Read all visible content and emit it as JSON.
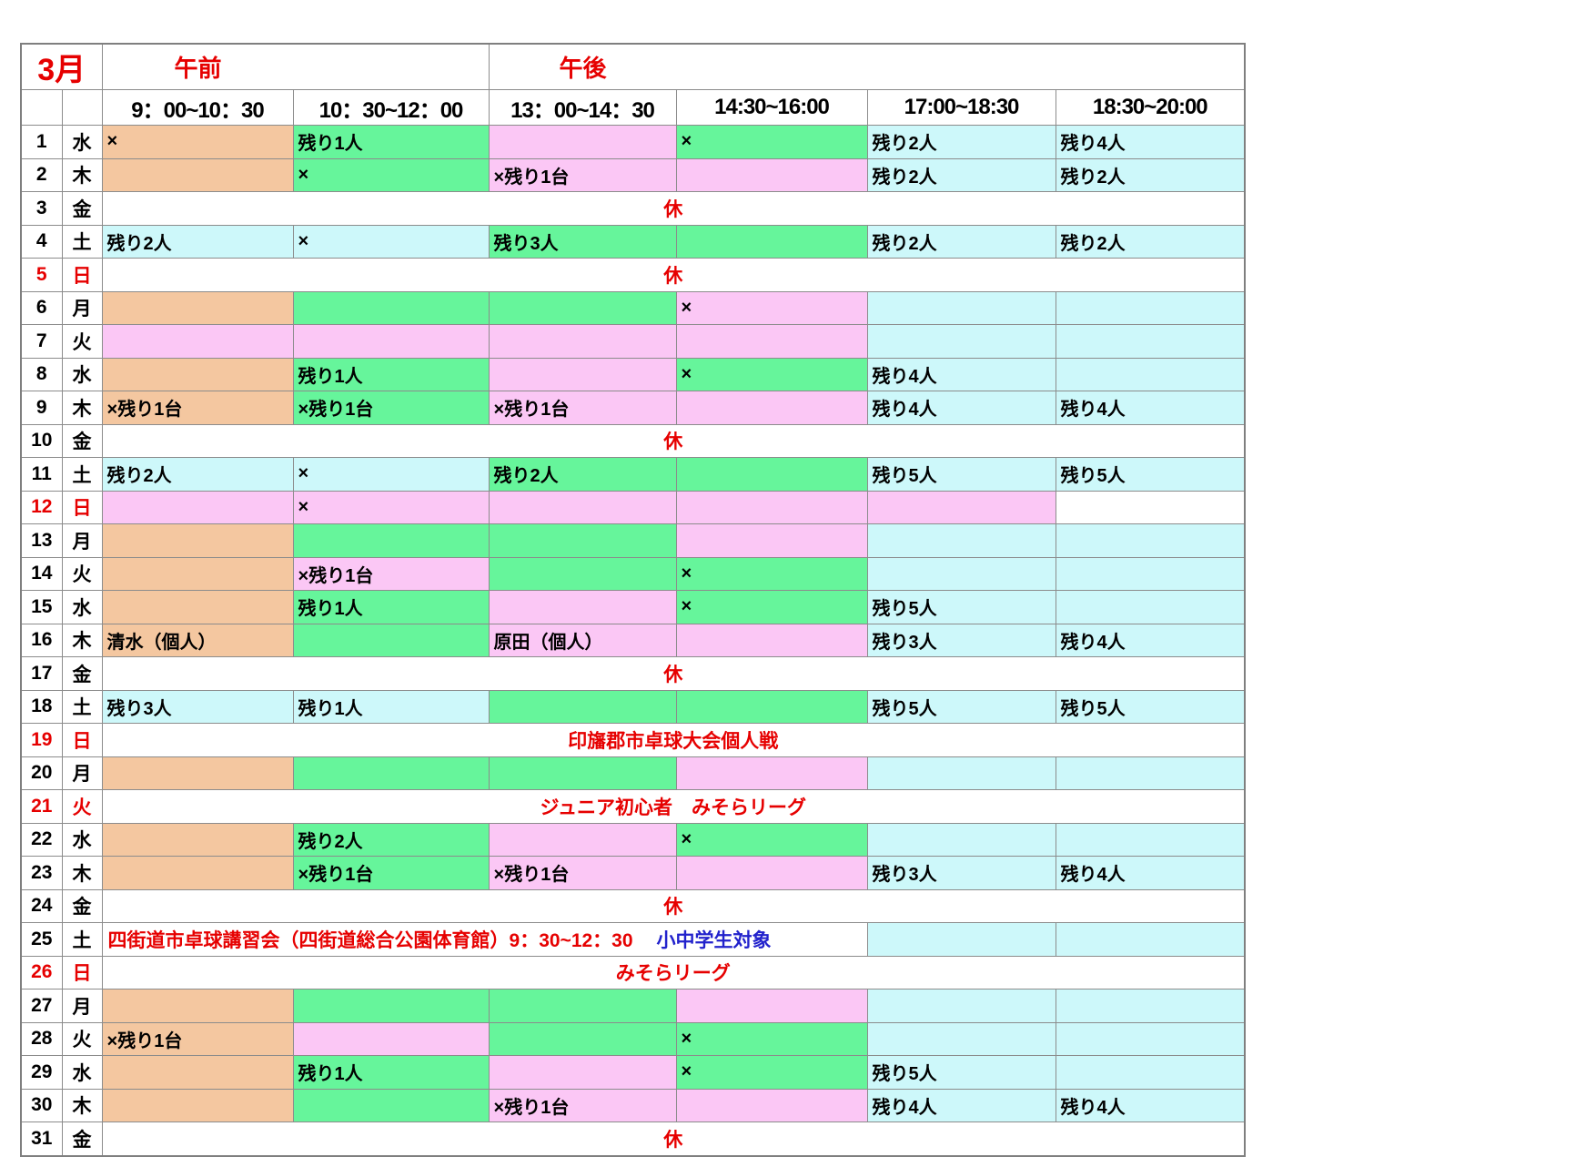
{
  "title": "3月",
  "palette": {
    "orange": "#F4C7A0",
    "green": "#66F59B",
    "pink": "#FBC7F5",
    "cyan": "#CDF8FA",
    "white": "#FFFFFF",
    "red_text": "#E60000",
    "blue_text": "#2222CC",
    "black_text": "#000000",
    "grid_line": "#8C8C8C"
  },
  "header": {
    "am_label": "午前",
    "pm_label": "午後",
    "time_slots": [
      "9：00~10：30",
      "10：30~12：00",
      "13：00~14：30",
      "14:30~16:00",
      "17:00~18:30",
      "18:30~20:00"
    ]
  },
  "rows": [
    {
      "day": "1",
      "dow": "水",
      "red": false,
      "cells": [
        [
          "orange",
          "×"
        ],
        [
          "green",
          "残り1人"
        ],
        [
          "pink",
          ""
        ],
        [
          "green",
          "×"
        ],
        [
          "cyan",
          "残り2人"
        ],
        [
          "cyan",
          "残り4人"
        ]
      ]
    },
    {
      "day": "2",
      "dow": "木",
      "red": false,
      "cells": [
        [
          "orange",
          ""
        ],
        [
          "green",
          "×"
        ],
        [
          "pink",
          "×残り1台"
        ],
        [
          "pink",
          ""
        ],
        [
          "cyan",
          "残り2人"
        ],
        [
          "cyan",
          "残り2人"
        ]
      ]
    },
    {
      "day": "3",
      "dow": "金",
      "red": false,
      "merged": "休"
    },
    {
      "day": "4",
      "dow": "土",
      "red": false,
      "cells": [
        [
          "cyan",
          "残り2人"
        ],
        [
          "cyan",
          "×"
        ],
        [
          "green",
          "残り3人"
        ],
        [
          "green",
          ""
        ],
        [
          "cyan",
          "残り2人"
        ],
        [
          "cyan",
          "残り2人"
        ]
      ]
    },
    {
      "day": "5",
      "dow": "日",
      "red": true,
      "merged": "休"
    },
    {
      "day": "6",
      "dow": "月",
      "red": false,
      "cells": [
        [
          "orange",
          ""
        ],
        [
          "green",
          ""
        ],
        [
          "green",
          ""
        ],
        [
          "pink",
          "×"
        ],
        [
          "cyan",
          ""
        ],
        [
          "cyan",
          ""
        ]
      ]
    },
    {
      "day": "7",
      "dow": "火",
      "red": false,
      "cells": [
        [
          "pink",
          ""
        ],
        [
          "pink",
          ""
        ],
        [
          "pink",
          ""
        ],
        [
          "pink",
          ""
        ],
        [
          "cyan",
          ""
        ],
        [
          "cyan",
          ""
        ]
      ]
    },
    {
      "day": "8",
      "dow": "水",
      "red": false,
      "cells": [
        [
          "orange",
          ""
        ],
        [
          "green",
          "残り1人"
        ],
        [
          "pink",
          ""
        ],
        [
          "green",
          "×"
        ],
        [
          "cyan",
          "残り4人"
        ],
        [
          "cyan",
          ""
        ]
      ]
    },
    {
      "day": "9",
      "dow": "木",
      "red": false,
      "cells": [
        [
          "orange",
          "×残り1台"
        ],
        [
          "green",
          "×残り1台"
        ],
        [
          "pink",
          "×残り1台"
        ],
        [
          "pink",
          ""
        ],
        [
          "cyan",
          "残り4人"
        ],
        [
          "cyan",
          "残り4人"
        ]
      ]
    },
    {
      "day": "10",
      "dow": "金",
      "red": false,
      "merged": "休"
    },
    {
      "day": "11",
      "dow": "土",
      "red": false,
      "cells": [
        [
          "cyan",
          "残り2人"
        ],
        [
          "cyan",
          "×"
        ],
        [
          "green",
          "残り2人"
        ],
        [
          "green",
          ""
        ],
        [
          "cyan",
          "残り5人"
        ],
        [
          "cyan",
          "残り5人"
        ]
      ]
    },
    {
      "day": "12",
      "dow": "日",
      "red": true,
      "cells": [
        [
          "pink",
          ""
        ],
        [
          "pink",
          "×"
        ],
        [
          "pink",
          ""
        ],
        [
          "pink",
          ""
        ],
        [
          "pink",
          ""
        ],
        [
          "white",
          ""
        ]
      ]
    },
    {
      "day": "13",
      "dow": "月",
      "red": false,
      "cells": [
        [
          "orange",
          ""
        ],
        [
          "green",
          ""
        ],
        [
          "green",
          ""
        ],
        [
          "pink",
          ""
        ],
        [
          "cyan",
          ""
        ],
        [
          "cyan",
          ""
        ]
      ]
    },
    {
      "day": "14",
      "dow": "火",
      "red": false,
      "cells": [
        [
          "orange",
          ""
        ],
        [
          "pink",
          "×残り1台"
        ],
        [
          "green",
          ""
        ],
        [
          "green",
          "×"
        ],
        [
          "cyan",
          ""
        ],
        [
          "cyan",
          ""
        ]
      ]
    },
    {
      "day": "15",
      "dow": "水",
      "red": false,
      "cells": [
        [
          "orange",
          ""
        ],
        [
          "green",
          "残り1人"
        ],
        [
          "pink",
          ""
        ],
        [
          "green",
          "×"
        ],
        [
          "cyan",
          "残り5人"
        ],
        [
          "cyan",
          ""
        ]
      ]
    },
    {
      "day": "16",
      "dow": "木",
      "red": false,
      "cells": [
        [
          "orange",
          "清水（個人）"
        ],
        [
          "green",
          ""
        ],
        [
          "pink",
          "原田（個人）"
        ],
        [
          "pink",
          ""
        ],
        [
          "cyan",
          "残り3人"
        ],
        [
          "cyan",
          "残り4人"
        ]
      ]
    },
    {
      "day": "17",
      "dow": "金",
      "red": false,
      "merged": "休"
    },
    {
      "day": "18",
      "dow": "土",
      "red": false,
      "cells": [
        [
          "cyan",
          "残り3人"
        ],
        [
          "cyan",
          "残り1人"
        ],
        [
          "green",
          ""
        ],
        [
          "green",
          ""
        ],
        [
          "cyan",
          "残り5人"
        ],
        [
          "cyan",
          "残り5人"
        ]
      ]
    },
    {
      "day": "19",
      "dow": "日",
      "red": true,
      "merged": "印旛郡市卓球大会個人戦"
    },
    {
      "day": "20",
      "dow": "月",
      "red": false,
      "cells": [
        [
          "orange",
          ""
        ],
        [
          "green",
          ""
        ],
        [
          "green",
          ""
        ],
        [
          "pink",
          ""
        ],
        [
          "cyan",
          ""
        ],
        [
          "cyan",
          ""
        ]
      ]
    },
    {
      "day": "21",
      "dow": "火",
      "red": true,
      "merged": "ジュニア初心者　みそらリーグ"
    },
    {
      "day": "22",
      "dow": "水",
      "red": false,
      "cells": [
        [
          "orange",
          ""
        ],
        [
          "green",
          "残り2人"
        ],
        [
          "pink",
          ""
        ],
        [
          "green",
          "×"
        ],
        [
          "cyan",
          ""
        ],
        [
          "cyan",
          ""
        ]
      ]
    },
    {
      "day": "23",
      "dow": "木",
      "red": false,
      "cells": [
        [
          "orange",
          ""
        ],
        [
          "green",
          "×残り1台"
        ],
        [
          "pink",
          "×残り1台"
        ],
        [
          "pink",
          ""
        ],
        [
          "cyan",
          "残り3人"
        ],
        [
          "cyan",
          "残り4人"
        ]
      ]
    },
    {
      "day": "24",
      "dow": "金",
      "red": false,
      "merged": "休"
    },
    {
      "day": "25",
      "dow": "土",
      "red": false,
      "notice": {
        "red_part": "四街道市卓球講習会（四街道総合公園体育館）9：30~12：30",
        "blue_part": "小中学生対象"
      },
      "tail_cells": [
        [
          "cyan",
          ""
        ],
        [
          "cyan",
          ""
        ]
      ]
    },
    {
      "day": "26",
      "dow": "日",
      "red": true,
      "merged": "みそらリーグ"
    },
    {
      "day": "27",
      "dow": "月",
      "red": false,
      "cells": [
        [
          "orange",
          ""
        ],
        [
          "green",
          ""
        ],
        [
          "green",
          ""
        ],
        [
          "pink",
          ""
        ],
        [
          "cyan",
          ""
        ],
        [
          "cyan",
          ""
        ]
      ]
    },
    {
      "day": "28",
      "dow": "火",
      "red": false,
      "cells": [
        [
          "orange",
          "×残り1台"
        ],
        [
          "pink",
          ""
        ],
        [
          "green",
          ""
        ],
        [
          "green",
          "×"
        ],
        [
          "cyan",
          ""
        ],
        [
          "cyan",
          ""
        ]
      ]
    },
    {
      "day": "29",
      "dow": "水",
      "red": false,
      "cells": [
        [
          "orange",
          ""
        ],
        [
          "green",
          "残り1人"
        ],
        [
          "pink",
          ""
        ],
        [
          "green",
          "×"
        ],
        [
          "cyan",
          "残り5人"
        ],
        [
          "cyan",
          ""
        ]
      ]
    },
    {
      "day": "30",
      "dow": "木",
      "red": false,
      "cells": [
        [
          "orange",
          ""
        ],
        [
          "green",
          ""
        ],
        [
          "pink",
          "×残り1台"
        ],
        [
          "pink",
          ""
        ],
        [
          "cyan",
          "残り4人"
        ],
        [
          "cyan",
          "残り4人"
        ]
      ]
    },
    {
      "day": "31",
      "dow": "金",
      "red": false,
      "merged": "休"
    }
  ]
}
